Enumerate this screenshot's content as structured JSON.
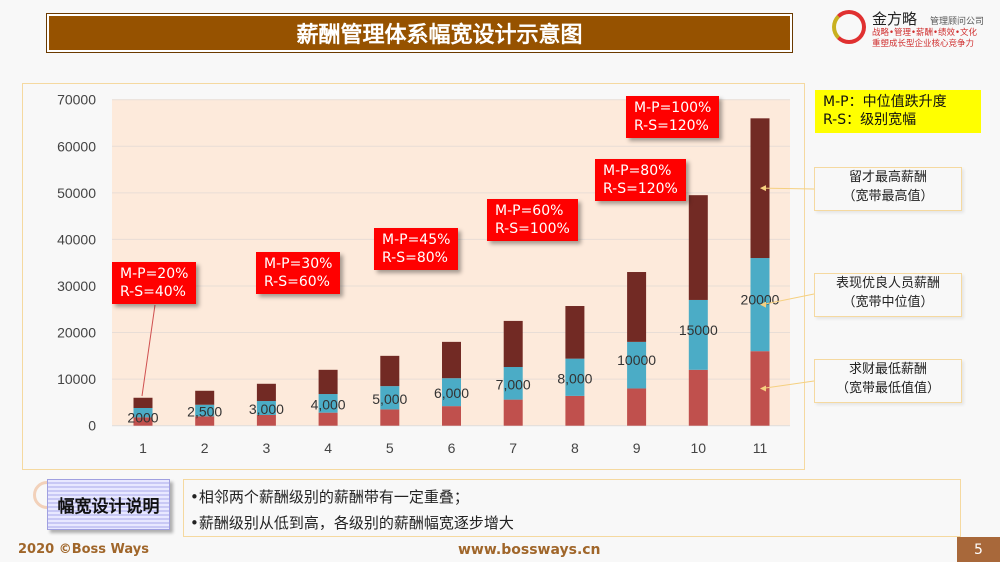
{
  "title": "薪酬管理体系幅宽设计示意图",
  "logo": {
    "brand": "金方略",
    "company": "管理顾问公司",
    "line2": "战略•管理•薪酬•绩效•文化",
    "line3": "重塑成长型企业核心竞争力"
  },
  "legend_box": {
    "line1": "M-P：中位值跌升度",
    "line2": "R-S：级别宽幅"
  },
  "notes": [
    {
      "line1": "留才最高薪酬",
      "line2": "（宽带最高值）"
    },
    {
      "line1": "表现优良人员薪酬",
      "line2": "（宽带中位值）"
    },
    {
      "line1": "求财最低薪酬",
      "line2": "（宽带最低值值）"
    }
  ],
  "callouts": [
    {
      "mp": "M-P=20%",
      "rs": "R-S=40%"
    },
    {
      "mp": "M-P=30%",
      "rs": "R-S=60%"
    },
    {
      "mp": "M-P=45%",
      "rs": "R-S=80%"
    },
    {
      "mp": "M-P=60%",
      "rs": "R-S=100%"
    },
    {
      "mp": "M-P=80%",
      "rs": "R-S=120%"
    },
    {
      "mp": "M-P=100%",
      "rs": "R-S=120%"
    }
  ],
  "chart_data": {
    "type": "bar",
    "stacked": true,
    "categories": [
      "1",
      "2",
      "3",
      "4",
      "5",
      "6",
      "7",
      "8",
      "9",
      "10",
      "11"
    ],
    "series": [
      {
        "values": [
          1800,
          2000,
          2300,
          2800,
          3500,
          4200,
          5600,
          6400,
          8000,
          12000,
          16000
        ],
        "color": "#c0504d"
      },
      {
        "values": [
          2000,
          2500,
          3000,
          4000,
          5000,
          6000,
          7000,
          8000,
          10000,
          15000,
          20000
        ],
        "color": "#4bacc6"
      },
      {
        "values": [
          2200,
          3000,
          3700,
          5200,
          6500,
          7800,
          9900,
          11300,
          15000,
          22500,
          30000
        ],
        "color": "#722a24"
      }
    ],
    "data_labels": [
      "2000",
      "2,500",
      "3,000",
      "4,000",
      "5,000",
      "6,000",
      "7,000",
      "8,000",
      "10000",
      "15000",
      "20000"
    ],
    "yticks": [
      "0",
      "10000",
      "20000",
      "30000",
      "40000",
      "50000",
      "60000",
      "70000"
    ],
    "ylim": [
      0,
      70000
    ],
    "grid": true,
    "plot_background": "#fdeadb"
  },
  "explain": {
    "label": "幅宽设计说明",
    "bullets": [
      "•相邻两个薪酬级别的薪酬带有一定重叠；",
      "•薪酬级别从低到高，各级别的薪酬幅宽逐步增大"
    ]
  },
  "footer": {
    "copyright": "2020 ©Boss Ways",
    "url": "www.bossways.cn",
    "page": "5"
  }
}
